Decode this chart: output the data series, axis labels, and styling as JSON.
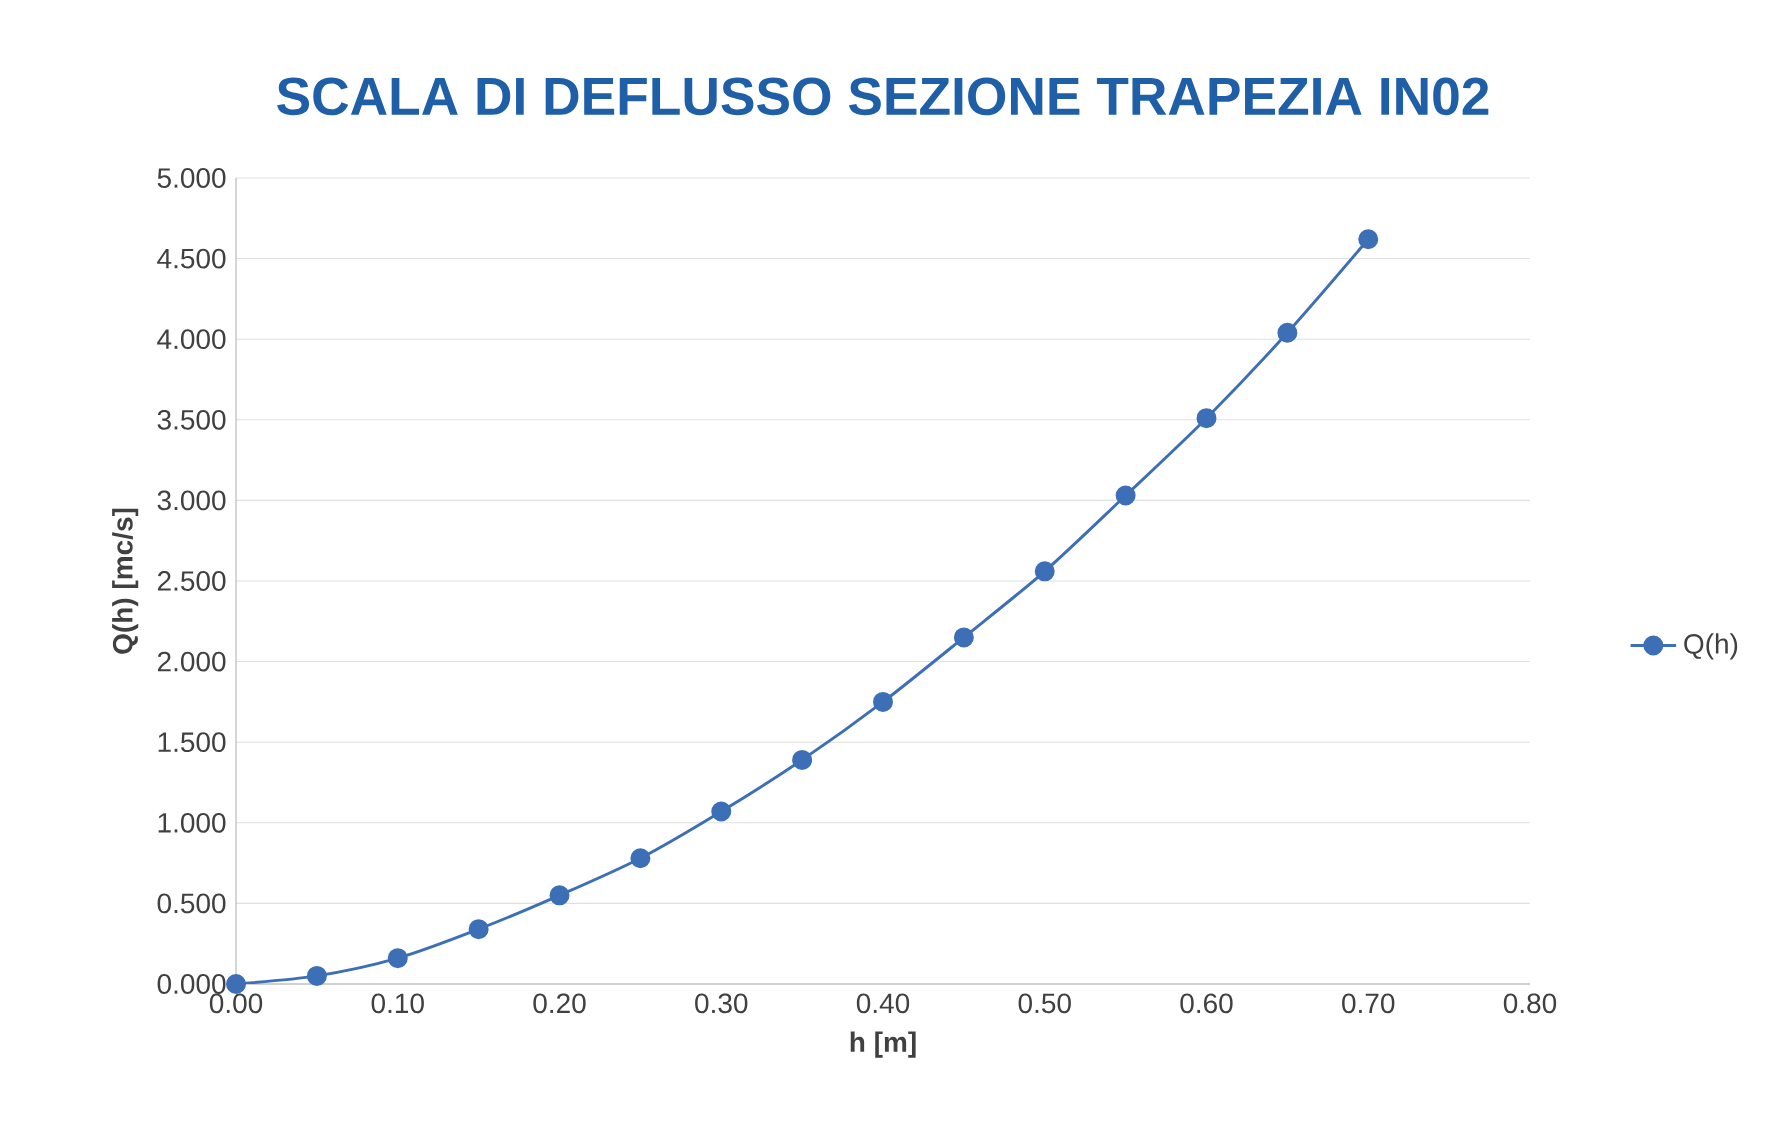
{
  "chart_data": {
    "type": "line",
    "title": "SCALA DI DEFLUSSO SEZIONE TRAPEZIA IN02",
    "xlabel": "h [m]",
    "ylabel": "Q(h) [mc/s]",
    "x": [
      0.0,
      0.05,
      0.1,
      0.15,
      0.2,
      0.25,
      0.3,
      0.35,
      0.4,
      0.45,
      0.5,
      0.55,
      0.6,
      0.65,
      0.7
    ],
    "series": [
      {
        "name": "Q(h)",
        "color": "#3c6fb6",
        "values": [
          0.0,
          0.05,
          0.16,
          0.34,
          0.55,
          0.78,
          1.07,
          1.39,
          1.75,
          2.15,
          2.56,
          3.03,
          3.51,
          4.04,
          4.62
        ]
      }
    ],
    "xlim": [
      0,
      0.8
    ],
    "ylim": [
      0,
      5
    ],
    "xticks": [
      {
        "value": 0,
        "label": "0.00"
      },
      {
        "value": 0.1,
        "label": "0.10"
      },
      {
        "value": 0.2,
        "label": "0.20"
      },
      {
        "value": 0.3,
        "label": "0.30"
      },
      {
        "value": 0.4,
        "label": "0.40"
      },
      {
        "value": 0.5,
        "label": "0.50"
      },
      {
        "value": 0.6,
        "label": "0.60"
      },
      {
        "value": 0.7,
        "label": "0.70"
      },
      {
        "value": 0.8,
        "label": "0.80"
      }
    ],
    "yticks": [
      {
        "value": 0,
        "label": "0.000"
      },
      {
        "value": 0.5,
        "label": "0.500"
      },
      {
        "value": 1,
        "label": "1.000"
      },
      {
        "value": 1.5,
        "label": "1.500"
      },
      {
        "value": 2,
        "label": "2.000"
      },
      {
        "value": 2.5,
        "label": "2.500"
      },
      {
        "value": 3,
        "label": "3.000"
      },
      {
        "value": 3.5,
        "label": "3.500"
      },
      {
        "value": 4,
        "label": "4.000"
      },
      {
        "value": 4.5,
        "label": "4.500"
      },
      {
        "value": 5,
        "label": "5.000"
      }
    ],
    "grid": "y",
    "legend": "right",
    "marker": "circle",
    "line_style": "solid"
  }
}
